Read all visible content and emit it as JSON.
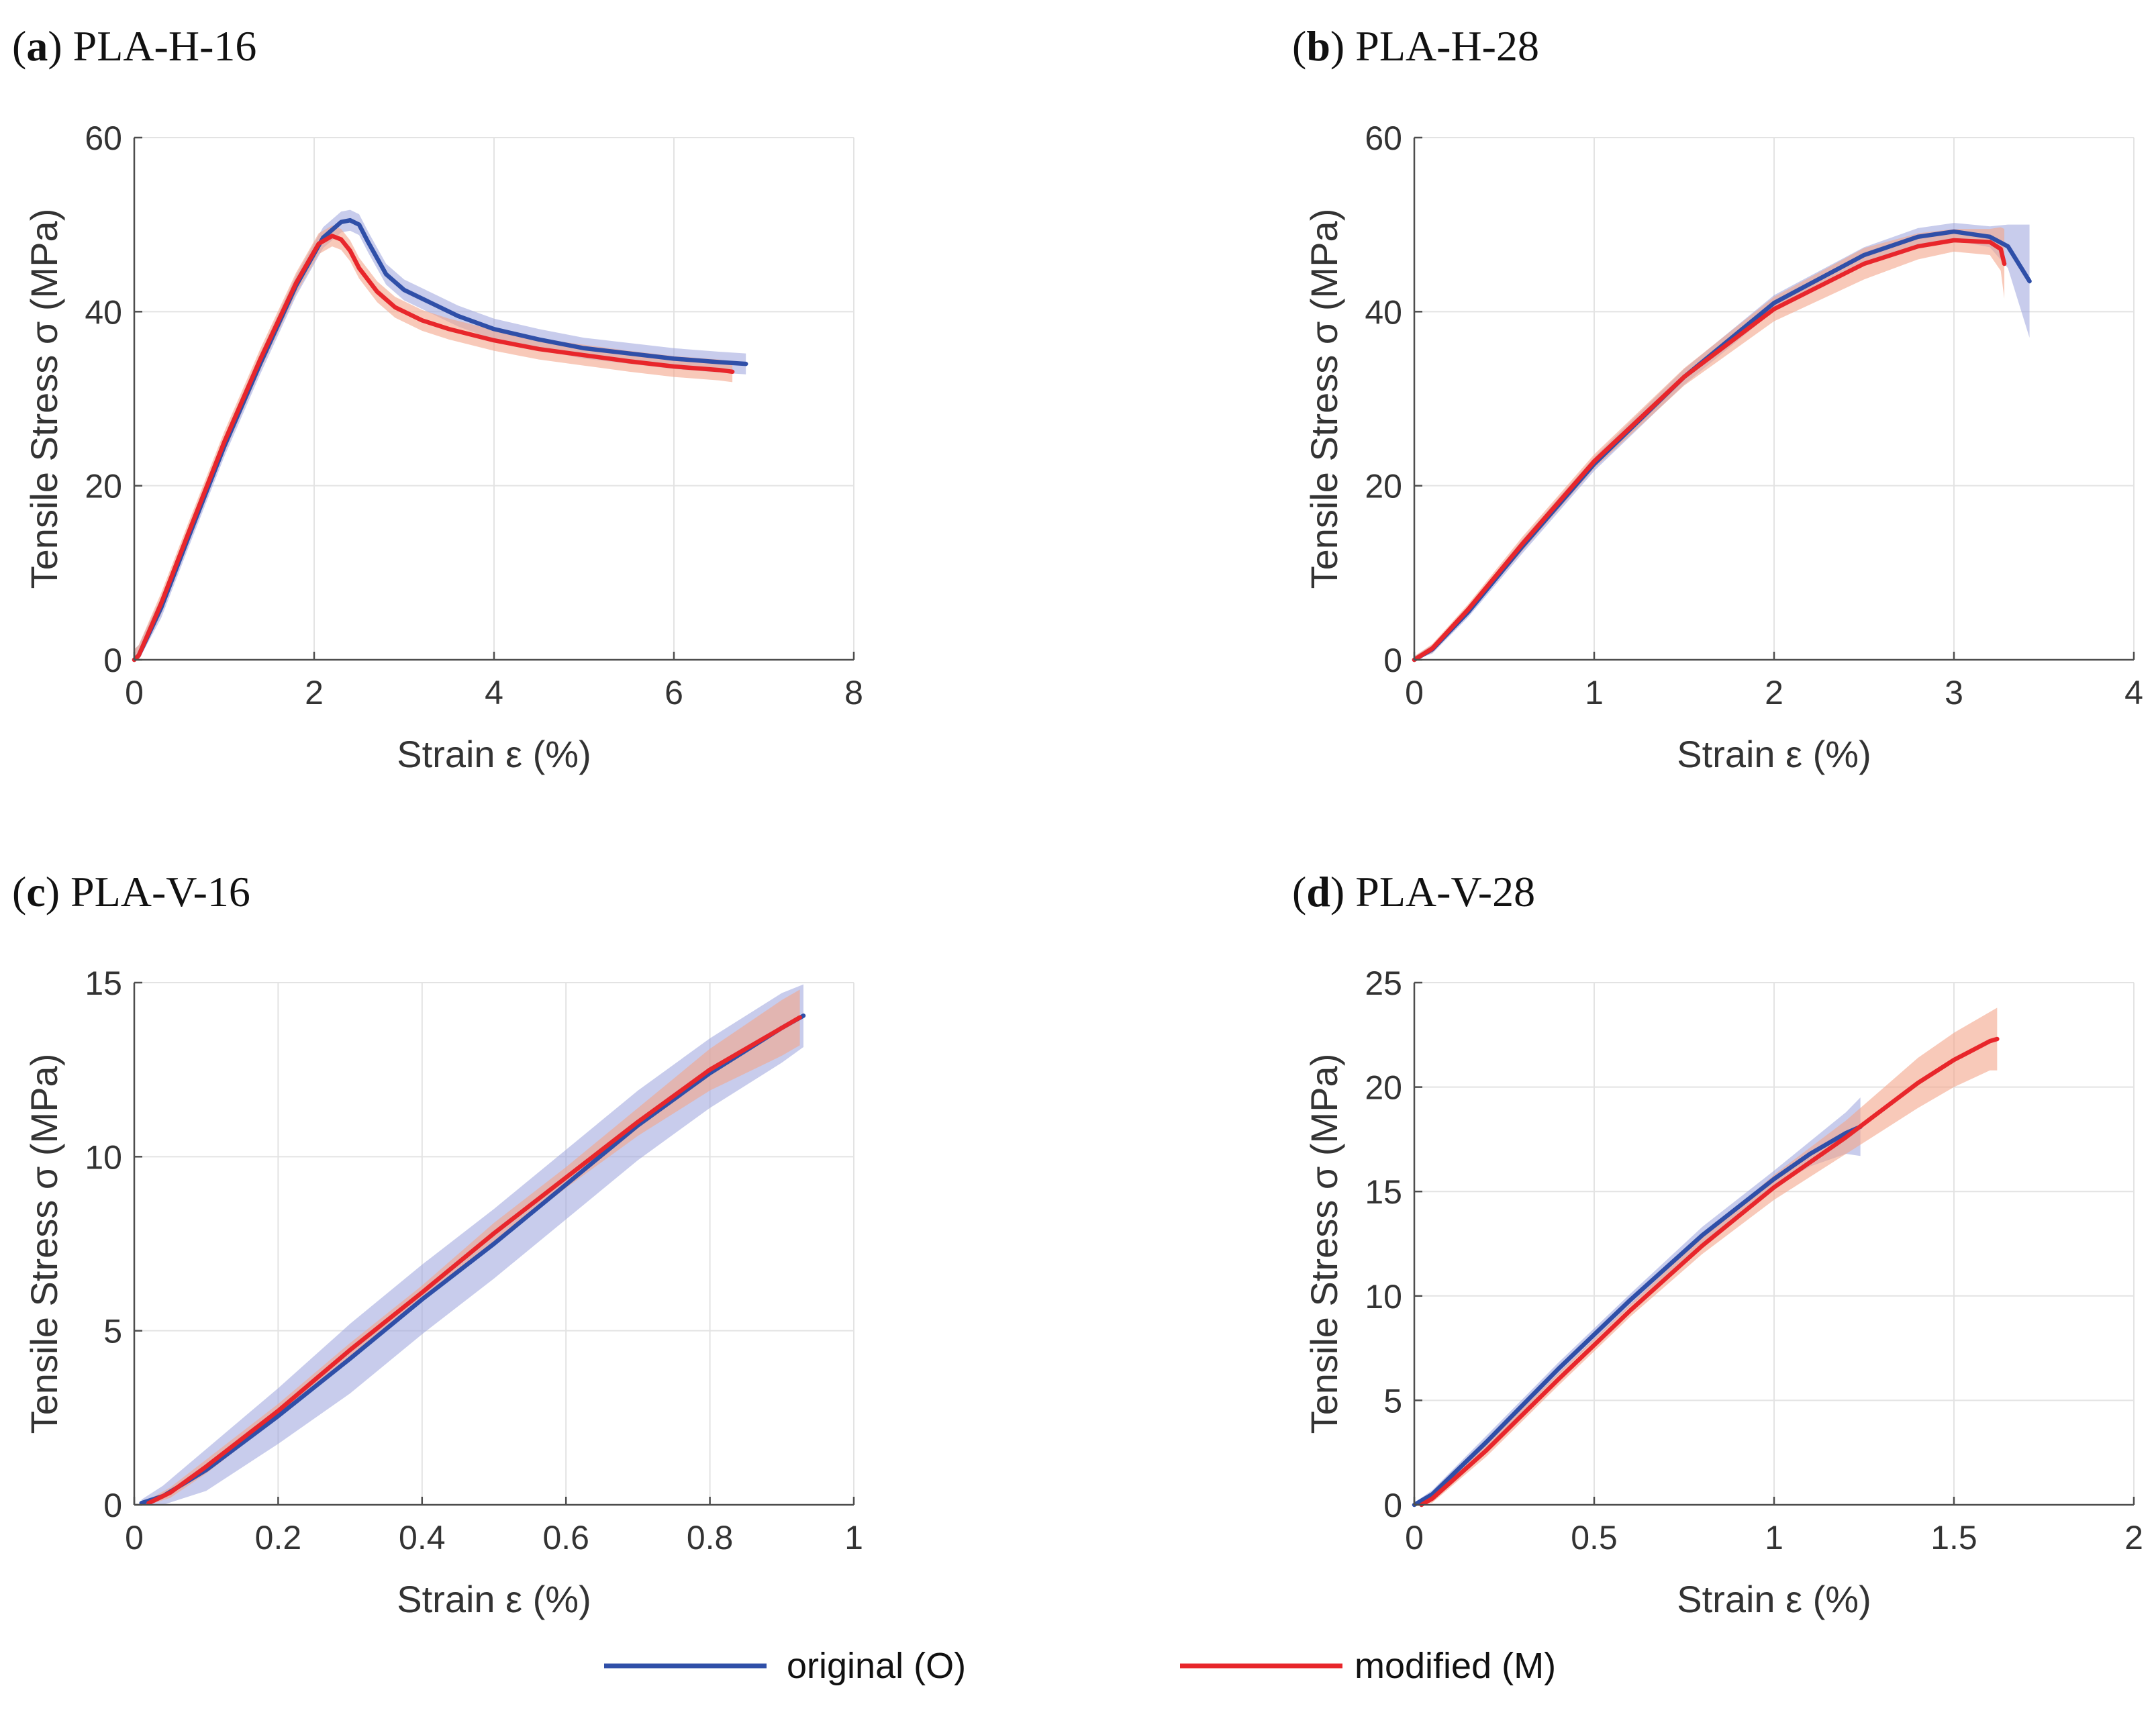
{
  "chart_data": [
    {
      "type": "line",
      "panel_letter": "a",
      "title": "PLA-H-16",
      "xlabel": "Strain ε (%)",
      "ylabel": "Tensile Stress σ (MPa)",
      "xlim": [
        0,
        8
      ],
      "ylim": [
        0,
        60
      ],
      "xticks": [
        0,
        2,
        4,
        6,
        8
      ],
      "yticks": [
        0,
        20,
        40,
        60
      ],
      "series": [
        {
          "name": "original (O)",
          "color": "#2f4fa8",
          "band_color": "#9aa3dc",
          "x": [
            0,
            0.05,
            0.3,
            0.6,
            1.0,
            1.4,
            1.8,
            2.1,
            2.3,
            2.4,
            2.5,
            2.6,
            2.8,
            3.0,
            3.3,
            3.6,
            4.0,
            4.5,
            5.0,
            5.5,
            6.0,
            6.5,
            6.8
          ],
          "y": [
            0,
            0.5,
            6,
            14,
            24.5,
            34,
            43,
            48.5,
            50.3,
            50.5,
            50,
            48,
            44.3,
            42.5,
            41,
            39.5,
            38,
            36.8,
            35.8,
            35.2,
            34.6,
            34.2,
            34.0
          ],
          "band": [
            1.2,
            1.2,
            1.2,
            1.2,
            1.2,
            1.2,
            1.2,
            1.2,
            1.2,
            1.2,
            1.2,
            1.2,
            1.2,
            1.2,
            1.2,
            1.2,
            1.2,
            1.2,
            1.2,
            1.2,
            1.2,
            1.2,
            1.2
          ]
        },
        {
          "name": "modified (M)",
          "color": "#e8262b",
          "band_color": "#f4a58a",
          "x": [
            0,
            0.05,
            0.3,
            0.6,
            1.0,
            1.4,
            1.8,
            2.05,
            2.2,
            2.3,
            2.4,
            2.5,
            2.7,
            2.9,
            3.2,
            3.5,
            4.0,
            4.5,
            5.0,
            5.5,
            6.0,
            6.5,
            6.65
          ],
          "y": [
            0,
            0.5,
            6.5,
            14.5,
            25,
            34.5,
            43.3,
            47.8,
            48.7,
            48.3,
            47,
            45,
            42.3,
            40.5,
            39,
            38,
            36.7,
            35.7,
            35,
            34.3,
            33.7,
            33.3,
            33.1
          ],
          "band": [
            1.2,
            1.2,
            1.2,
            1.2,
            1.2,
            1.2,
            1.2,
            1.2,
            1.2,
            1.2,
            1.2,
            1.2,
            1.2,
            1.2,
            1.2,
            1.2,
            1.2,
            1.2,
            1.2,
            1.2,
            1.2,
            1.2,
            1.2
          ]
        }
      ]
    },
    {
      "type": "line",
      "panel_letter": "b",
      "title": "PLA-H-28",
      "xlabel": "Strain ε (%)",
      "ylabel": "Tensile Stress σ (MPa)",
      "xlim": [
        0,
        4
      ],
      "ylim": [
        0,
        60
      ],
      "xticks": [
        0,
        1,
        2,
        3,
        4
      ],
      "yticks": [
        0,
        20,
        40,
        60
      ],
      "series": [
        {
          "name": "original (O)",
          "color": "#2f4fa8",
          "band_color": "#9aa3dc",
          "x": [
            0,
            0.1,
            0.3,
            0.6,
            1.0,
            1.5,
            2.0,
            2.5,
            2.8,
            3.0,
            3.2,
            3.3,
            3.42
          ],
          "y": [
            0,
            1.2,
            5.5,
            13,
            22.5,
            32.5,
            41,
            46.5,
            48.6,
            49.2,
            48.6,
            47.5,
            43.5
          ],
          "band": [
            0.4,
            0.5,
            0.6,
            0.8,
            0.8,
            0.9,
            0.9,
            0.9,
            1.0,
            1.0,
            1.2,
            2.5,
            6.5
          ]
        },
        {
          "name": "modified (M)",
          "color": "#e8262b",
          "band_color": "#f4a58a",
          "x": [
            0,
            0.1,
            0.3,
            0.6,
            1.0,
            1.5,
            2.0,
            2.5,
            2.8,
            3.0,
            3.2,
            3.26,
            3.28
          ],
          "y": [
            0,
            1.3,
            5.8,
            13.3,
            22.8,
            32.5,
            40.3,
            45.5,
            47.5,
            48.2,
            48.0,
            47.2,
            45.5
          ],
          "band": [
            0.4,
            0.5,
            0.6,
            0.8,
            0.8,
            1.0,
            1.4,
            1.8,
            1.5,
            1.3,
            1.5,
            2.5,
            4.0
          ]
        }
      ]
    },
    {
      "type": "line",
      "panel_letter": "c",
      "title": "PLA-V-16",
      "xlabel": "Strain ε (%)",
      "ylabel": "Tensile Stress σ (MPa)",
      "xlim": [
        0,
        1
      ],
      "ylim": [
        0,
        15
      ],
      "xticks": [
        0,
        0.2,
        0.4,
        0.6,
        0.8,
        1
      ],
      "yticks": [
        0,
        5,
        10,
        15
      ],
      "series": [
        {
          "name": "original (O)",
          "color": "#2f4fa8",
          "band_color": "#9aa3dc",
          "x": [
            0.01,
            0.04,
            0.1,
            0.2,
            0.3,
            0.4,
            0.5,
            0.6,
            0.7,
            0.8,
            0.9,
            0.93
          ],
          "y": [
            0.05,
            0.25,
            1.0,
            2.55,
            4.2,
            5.9,
            7.5,
            9.2,
            10.9,
            12.4,
            13.7,
            14.05
          ],
          "band": [
            0.1,
            0.3,
            0.6,
            0.8,
            1.0,
            1.0,
            1.0,
            1.0,
            1.0,
            1.0,
            1.0,
            0.9
          ]
        },
        {
          "name": "modified (M)",
          "color": "#e8262b",
          "band_color": "#f4a58a",
          "x": [
            0.02,
            0.05,
            0.1,
            0.2,
            0.3,
            0.4,
            0.5,
            0.6,
            0.7,
            0.8,
            0.9,
            0.925
          ],
          "y": [
            0.05,
            0.35,
            1.1,
            2.7,
            4.45,
            6.1,
            7.8,
            9.4,
            11.0,
            12.5,
            13.7,
            14.0
          ],
          "band": [
            0.1,
            0.15,
            0.2,
            0.2,
            0.2,
            0.2,
            0.3,
            0.3,
            0.4,
            0.6,
            0.8,
            0.8
          ]
        }
      ]
    },
    {
      "type": "line",
      "panel_letter": "d",
      "title": "PLA-V-28",
      "xlabel": "Strain ε (%)",
      "ylabel": "Tensile Stress σ (MPa)",
      "xlim": [
        0,
        2
      ],
      "ylim": [
        0,
        25
      ],
      "xticks": [
        0,
        0.5,
        1,
        1.5,
        2
      ],
      "xtick_labels": [
        "0",
        "0.5",
        "1",
        "1.5",
        "2"
      ],
      "yticks": [
        0,
        5,
        10,
        15,
        20,
        25
      ],
      "series": [
        {
          "name": "original (O)",
          "color": "#2f4fa8",
          "band_color": "#9aa3dc",
          "x": [
            0,
            0.05,
            0.2,
            0.4,
            0.6,
            0.8,
            1.0,
            1.1,
            1.2,
            1.24
          ],
          "y": [
            0,
            0.5,
            3.0,
            6.5,
            9.8,
            12.9,
            15.6,
            16.8,
            17.8,
            18.1
          ],
          "band": [
            0.1,
            0.2,
            0.3,
            0.3,
            0.3,
            0.4,
            0.4,
            0.6,
            1.0,
            1.4
          ]
        },
        {
          "name": "modified (M)",
          "color": "#e8262b",
          "band_color": "#f4a58a",
          "x": [
            0.02,
            0.05,
            0.2,
            0.4,
            0.6,
            0.8,
            1.0,
            1.2,
            1.3,
            1.4,
            1.5,
            1.6,
            1.62
          ],
          "y": [
            0,
            0.3,
            2.6,
            6.0,
            9.3,
            12.4,
            15.2,
            17.6,
            18.9,
            20.2,
            21.3,
            22.2,
            22.3
          ],
          "band": [
            0.1,
            0.2,
            0.3,
            0.3,
            0.3,
            0.4,
            0.6,
            0.8,
            1.0,
            1.2,
            1.3,
            1.4,
            1.5
          ]
        }
      ]
    }
  ],
  "legend": {
    "items": [
      {
        "label": "original (O)",
        "color": "#2f4fa8"
      },
      {
        "label": "modified (M)",
        "color": "#e8262b"
      }
    ]
  }
}
